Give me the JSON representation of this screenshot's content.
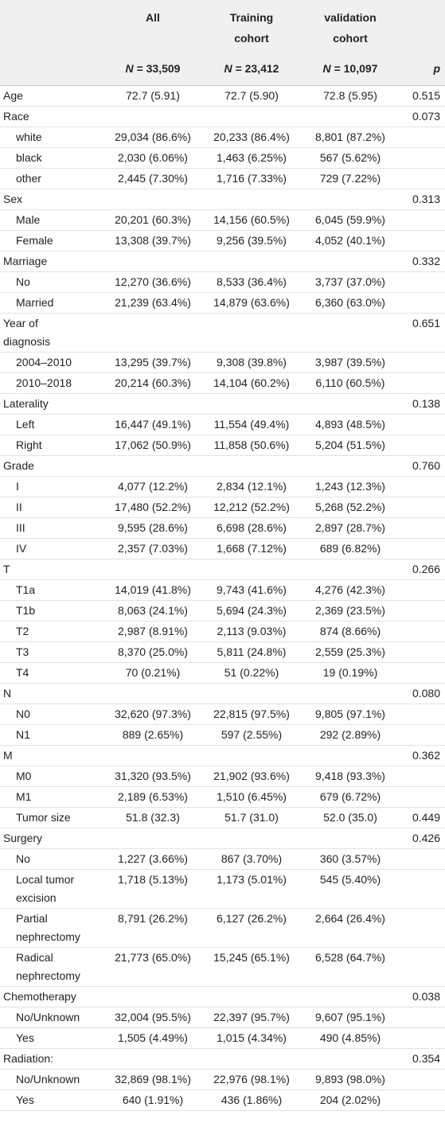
{
  "header": {
    "columns": [
      {
        "title": "All",
        "n_symbol": "N",
        "n_value": "= 33,509"
      },
      {
        "title": "Training cohort",
        "n_symbol": "N",
        "n_value": "= 23,412"
      },
      {
        "title": "validation cohort",
        "n_symbol": "N",
        "n_value": "= 10,097"
      }
    ],
    "p": "p"
  },
  "groups": [
    {
      "label": "Age",
      "values": [
        "72.7 (5.91)",
        "72.7 (5.90)",
        "72.8 (5.95)"
      ],
      "p": "0.515"
    },
    {
      "label": "Race",
      "p": "0.073",
      "items": [
        {
          "label": "white",
          "values": [
            "29,034 (86.6%)",
            "20,233 (86.4%)",
            "8,801 (87.2%)"
          ]
        },
        {
          "label": "black",
          "values": [
            "2,030 (6.06%)",
            "1,463 (6.25%)",
            "567 (5.62%)"
          ]
        },
        {
          "label": "other",
          "values": [
            "2,445 (7.30%)",
            "1,716 (7.33%)",
            "729 (7.22%)"
          ]
        }
      ]
    },
    {
      "label": "Sex",
      "p": "0.313",
      "items": [
        {
          "label": "Male",
          "values": [
            "20,201 (60.3%)",
            "14,156 (60.5%)",
            "6,045 (59.9%)"
          ]
        },
        {
          "label": "Female",
          "values": [
            "13,308 (39.7%)",
            "9,256 (39.5%)",
            "4,052 (40.1%)"
          ]
        }
      ]
    },
    {
      "label": "Marriage",
      "p": "0.332",
      "items": [
        {
          "label": "No",
          "values": [
            "12,270 (36.6%)",
            "8,533 (36.4%)",
            "3,737 (37.0%)"
          ]
        },
        {
          "label": "Married",
          "values": [
            "21,239 (63.4%)",
            "14,879 (63.6%)",
            "6,360 (63.0%)"
          ]
        }
      ]
    },
    {
      "label": "Year of diagnosis",
      "p": "0.651",
      "items": [
        {
          "label": "2004–2010",
          "values": [
            "13,295 (39.7%)",
            "9,308 (39.8%)",
            "3,987 (39.5%)"
          ]
        },
        {
          "label": "2010–2018",
          "values": [
            "20,214 (60.3%)",
            "14,104 (60.2%)",
            "6,110 (60.5%)"
          ]
        }
      ]
    },
    {
      "label": "Laterality",
      "p": "0.138",
      "items": [
        {
          "label": "Left",
          "values": [
            "16,447 (49.1%)",
            "11,554 (49.4%)",
            "4,893 (48.5%)"
          ]
        },
        {
          "label": "Right",
          "values": [
            "17,062 (50.9%)",
            "11,858 (50.6%)",
            "5,204 (51.5%)"
          ]
        }
      ]
    },
    {
      "label": "Grade",
      "p": "0.760",
      "items": [
        {
          "label": "I",
          "values": [
            "4,077 (12.2%)",
            "2,834 (12.1%)",
            "1,243 (12.3%)"
          ]
        },
        {
          "label": "II",
          "values": [
            "17,480 (52.2%)",
            "12,212 (52.2%)",
            "5,268 (52.2%)"
          ]
        },
        {
          "label": "III",
          "values": [
            "9,595 (28.6%)",
            "6,698 (28.6%)",
            "2,897 (28.7%)"
          ]
        },
        {
          "label": "IV",
          "values": [
            "2,357 (7.03%)",
            "1,668 (7.12%)",
            "689 (6.82%)"
          ]
        }
      ]
    },
    {
      "label": "T",
      "p": "0.266",
      "items": [
        {
          "label": "T1a",
          "values": [
            "14,019 (41.8%)",
            "9,743 (41.6%)",
            "4,276 (42.3%)"
          ]
        },
        {
          "label": "T1b",
          "values": [
            "8,063 (24.1%)",
            "5,694 (24.3%)",
            "2,369 (23.5%)"
          ]
        },
        {
          "label": "T2",
          "values": [
            "2,987 (8.91%)",
            "2,113 (9.03%)",
            "874 (8.66%)"
          ]
        },
        {
          "label": "T3",
          "values": [
            "8,370 (25.0%)",
            "5,811 (24.8%)",
            "2,559 (25.3%)"
          ]
        },
        {
          "label": "T4",
          "values": [
            "70 (0.21%)",
            "51 (0.22%)",
            "19 (0.19%)"
          ]
        }
      ]
    },
    {
      "label": "N",
      "p": "0.080",
      "items": [
        {
          "label": "N0",
          "values": [
            "32,620 (97.3%)",
            "22,815 (97.5%)",
            "9,805 (97.1%)"
          ]
        },
        {
          "label": "N1",
          "values": [
            "889 (2.65%)",
            "597 (2.55%)",
            "292 (2.89%)"
          ]
        }
      ]
    },
    {
      "label": "M",
      "p": "0.362",
      "items": [
        {
          "label": "M0",
          "values": [
            "31,320 (93.5%)",
            "21,902 (93.6%)",
            "9,418 (93.3%)"
          ]
        },
        {
          "label": "M1",
          "values": [
            "2,189 (6.53%)",
            "1,510 (6.45%)",
            "679 (6.72%)"
          ]
        },
        {
          "label": "Tumor size",
          "values": [
            "51.8 (32.3)",
            "51.7 (31.0)",
            "52.0 (35.0)"
          ],
          "p": "0.449"
        }
      ]
    },
    {
      "label": "Surgery",
      "p": "0.426",
      "items": [
        {
          "label": "No",
          "values": [
            "1,227 (3.66%)",
            "867 (3.70%)",
            "360 (3.57%)"
          ]
        },
        {
          "label": "Local tumor excision",
          "values": [
            "1,718 (5.13%)",
            "1,173 (5.01%)",
            "545 (5.40%)"
          ]
        },
        {
          "label": "Partial nephrectomy",
          "values": [
            "8,791 (26.2%)",
            "6,127 (26.2%)",
            "2,664 (26.4%)"
          ]
        },
        {
          "label": "Radical nephrectomy",
          "values": [
            "21,773 (65.0%)",
            "15,245 (65.1%)",
            "6,528 (64.7%)"
          ]
        }
      ]
    },
    {
      "label": "Chemotherapy",
      "p": "0.038",
      "items": [
        {
          "label": "No/Unknown",
          "values": [
            "32,004 (95.5%)",
            "22,397 (95.7%)",
            "9,607 (95.1%)"
          ]
        },
        {
          "label": "Yes",
          "values": [
            "1,505 (4.49%)",
            "1,015 (4.34%)",
            "490 (4.85%)"
          ]
        }
      ]
    },
    {
      "label": "Radiation:",
      "p": "0.354",
      "items": [
        {
          "label": "No/Unknown",
          "values": [
            "32,869 (98.1%)",
            "22,976 (98.1%)",
            "9,893 (98.0%)"
          ]
        },
        {
          "label": "Yes",
          "values": [
            "640 (1.91%)",
            "436 (1.86%)",
            "204 (2.02%)"
          ]
        }
      ]
    }
  ]
}
